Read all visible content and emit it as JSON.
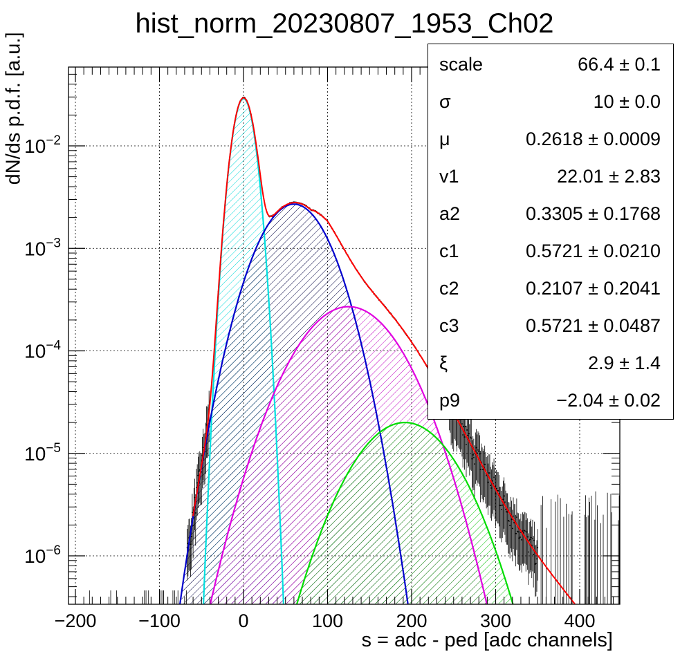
{
  "chart_data": {
    "type": "line",
    "title": "hist_norm_20230807_1953_Ch02",
    "xlabel": "s = adc - ped [adc channels]",
    "ylabel": "dN/ds p.d.f. [a.u.]",
    "xlim": [
      -210,
      450
    ],
    "ylim": [
      3.3e-07,
      0.065
    ],
    "yscale": "log",
    "grid": true,
    "x_ticks": [
      -200,
      -100,
      0,
      100,
      200,
      300,
      400
    ],
    "x_tick_labels": [
      "−200",
      "−100",
      "0",
      "100",
      "200",
      "300",
      "400"
    ],
    "y_ticks": [
      {
        "base": "10",
        "exp": "−6",
        "value": 1e-06
      },
      {
        "base": "10",
        "exp": "−5",
        "value": 1e-05
      },
      {
        "base": "10",
        "exp": "−4",
        "value": 0.0001
      },
      {
        "base": "10",
        "exp": "−3",
        "value": 0.001
      },
      {
        "base": "10",
        "exp": "−2",
        "value": 0.01
      }
    ],
    "series": [
      {
        "color": "#00e0e0",
        "peak_x": 0,
        "peak_y": 0.029,
        "sigma": 10
      },
      {
        "color": "#0000cc",
        "peak_x": 60,
        "peak_y": 0.0027,
        "sigma": 32
      },
      {
        "color": "#e000e0",
        "peak_x": 125,
        "peak_y": 0.00027,
        "sigma": 45
      },
      {
        "color": "#00dd00",
        "peak_x": 192,
        "peak_y": 2e-05,
        "sigma": 45
      },
      {
        "color": "#ff0000",
        "kind": "total"
      }
    ]
  },
  "stats": [
    {
      "name": "scale",
      "value": "66.4 ± 0.1"
    },
    {
      "name": "σ",
      "value": "10 ± 0.0"
    },
    {
      "name": "μ",
      "value": "0.2618 ± 0.0009"
    },
    {
      "name": "v1",
      "value": "22.01 ± 2.83"
    },
    {
      "name": "a2",
      "value": "0.3305 ± 0.1768"
    },
    {
      "name": "c1",
      "value": "0.5721 ± 0.0210"
    },
    {
      "name": "c2",
      "value": "0.2107 ± 0.2041"
    },
    {
      "name": "c3",
      "value": "0.5721 ± 0.0487"
    },
    {
      "name": "ξ",
      "value": "2.9 ± 1.4"
    },
    {
      "name": "p9",
      "value": "−2.04 ± 0.02"
    }
  ]
}
